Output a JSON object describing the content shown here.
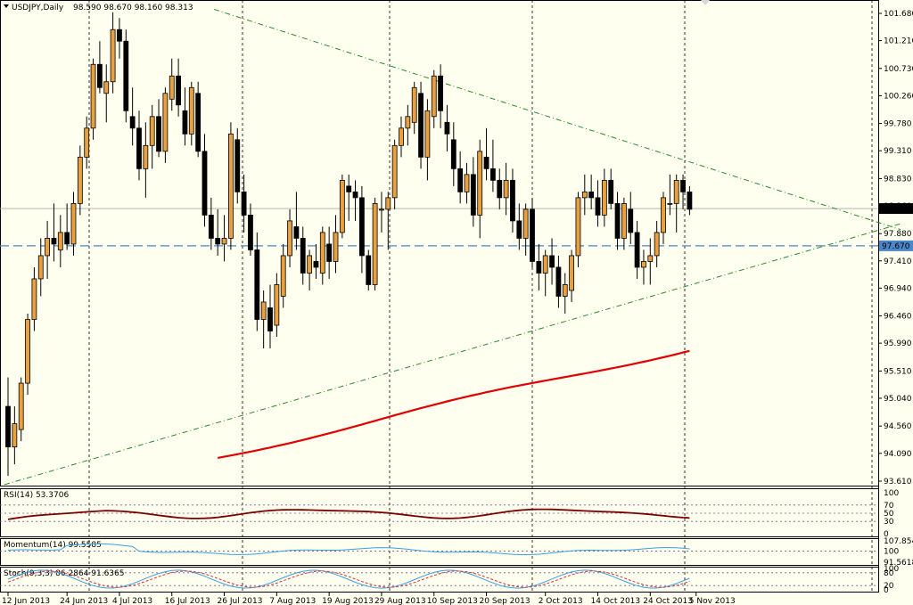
{
  "header": {
    "symbol": "USDJPY,Daily",
    "ohlc": "98.590 98.670 98.160 98.313"
  },
  "colors": {
    "background": "#fffff0",
    "bull_body": "#e8a040",
    "bear_body": "#000000",
    "ma_line": "#e00000",
    "trendline": "#2a8a2a",
    "current_price_tag": "#000000",
    "level_tag": "#4a86c8",
    "rsi_line": "#7a0000",
    "momentum_line": "#3aa0e0",
    "stoch_main": "#3aa0e0",
    "stoch_signal": "#e03030"
  },
  "chart_data": [
    {
      "type": "candlestick",
      "title": "USDJPY,Daily",
      "ylim": [
        93.61,
        101.68
      ],
      "y_ticks": [
        "101.680",
        "101.210",
        "100.730",
        "100.260",
        "99.780",
        "99.310",
        "98.830",
        "98.360",
        "97.880",
        "97.410",
        "96.940",
        "96.460",
        "95.990",
        "95.510",
        "95.040",
        "94.560",
        "94.090",
        "93.610"
      ],
      "x_ticks": [
        "12 Jun 2013",
        "24 Jun 2013",
        "4 Jul 2013",
        "16 Jul 2013",
        "26 Jul 2013",
        "7 Aug 2013",
        "19 Aug 2013",
        "29 Aug 2013",
        "10 Sep 2013",
        "20 Sep 2013",
        "2 Oct 2013",
        "14 Oct 2013",
        "24 Oct 2013",
        "5 Nov 2013"
      ],
      "current_price": "98.313",
      "horizontal_level": "97.670",
      "candles": [
        [
          94.9,
          95.4,
          93.7,
          94.2
        ],
        [
          94.2,
          94.9,
          93.9,
          94.6
        ],
        [
          94.5,
          95.4,
          94.3,
          95.3
        ],
        [
          95.3,
          96.5,
          95.1,
          96.4
        ],
        [
          96.4,
          97.3,
          96.2,
          97.1
        ],
        [
          97.1,
          97.8,
          96.8,
          97.5
        ],
        [
          97.5,
          98.1,
          97.1,
          97.8
        ],
        [
          97.8,
          98.4,
          97.4,
          97.7
        ],
        [
          97.6,
          98.2,
          97.3,
          97.9
        ],
        [
          97.9,
          98.4,
          97.6,
          97.7
        ],
        [
          97.7,
          98.6,
          97.5,
          98.4
        ],
        [
          98.4,
          99.4,
          98.2,
          99.2
        ],
        [
          99.2,
          99.9,
          99.0,
          99.7
        ],
        [
          99.7,
          100.9,
          99.5,
          100.8
        ],
        [
          100.8,
          101.2,
          100.3,
          100.4
        ],
        [
          100.3,
          100.8,
          99.8,
          100.5
        ],
        [
          100.5,
          101.7,
          100.3,
          101.4
        ],
        [
          101.4,
          101.6,
          100.9,
          101.2
        ],
        [
          101.2,
          101.4,
          99.8,
          100.0
        ],
        [
          99.9,
          100.4,
          99.4,
          99.7
        ],
        [
          99.7,
          100.0,
          98.8,
          99.0
        ],
        [
          99.0,
          99.8,
          98.5,
          99.4
        ],
        [
          99.4,
          100.1,
          99.0,
          99.9
        ],
        [
          99.9,
          100.2,
          99.2,
          99.3
        ],
        [
          99.3,
          100.4,
          99.1,
          100.3
        ],
        [
          100.2,
          100.9,
          100.0,
          100.6
        ],
        [
          100.6,
          100.9,
          99.9,
          100.1
        ],
        [
          100.0,
          100.4,
          99.4,
          99.6
        ],
        [
          99.6,
          100.5,
          99.4,
          100.4
        ],
        [
          100.3,
          100.5,
          99.2,
          99.3
        ],
        [
          99.3,
          99.6,
          98.0,
          98.2
        ],
        [
          98.2,
          98.5,
          97.6,
          97.8
        ],
        [
          97.8,
          98.3,
          97.5,
          97.7
        ],
        [
          97.7,
          98.2,
          97.4,
          97.8
        ],
        [
          97.8,
          99.8,
          97.6,
          99.6
        ],
        [
          99.5,
          99.7,
          98.4,
          98.6
        ],
        [
          98.6,
          98.9,
          97.9,
          98.2
        ],
        [
          98.2,
          98.4,
          97.5,
          97.6
        ],
        [
          97.6,
          97.9,
          96.2,
          96.4
        ],
        [
          96.4,
          96.9,
          95.9,
          96.7
        ],
        [
          96.6,
          97.0,
          95.9,
          96.2
        ],
        [
          96.3,
          97.2,
          96.1,
          97.0
        ],
        [
          96.8,
          97.7,
          96.6,
          97.5
        ],
        [
          97.5,
          98.3,
          97.3,
          98.1
        ],
        [
          98.0,
          98.6,
          97.6,
          97.8
        ],
        [
          97.8,
          98.0,
          97.0,
          97.2
        ],
        [
          97.2,
          97.6,
          96.9,
          97.5
        ],
        [
          97.4,
          97.7,
          97.1,
          97.3
        ],
        [
          97.2,
          98.0,
          97.0,
          97.9
        ],
        [
          97.7,
          98.0,
          97.1,
          97.4
        ],
        [
          97.4,
          98.2,
          97.2,
          97.9
        ],
        [
          97.9,
          98.9,
          97.8,
          98.8
        ],
        [
          98.7,
          98.9,
          98.1,
          98.6
        ],
        [
          98.6,
          98.8,
          98.1,
          98.5
        ],
        [
          98.5,
          98.7,
          97.2,
          97.5
        ],
        [
          97.5,
          97.6,
          96.9,
          97.0
        ],
        [
          97.0,
          98.5,
          96.9,
          98.4
        ],
        [
          98.3,
          98.6,
          97.9,
          98.3
        ],
        [
          98.3,
          98.6,
          97.6,
          98.5
        ],
        [
          98.5,
          99.5,
          98.3,
          99.4
        ],
        [
          99.4,
          99.9,
          99.2,
          99.7
        ],
        [
          99.7,
          100.1,
          99.4,
          99.9
        ],
        [
          99.8,
          100.5,
          99.6,
          100.4
        ],
        [
          100.3,
          100.5,
          99.0,
          99.2
        ],
        [
          99.2,
          100.2,
          98.8,
          100.0
        ],
        [
          99.9,
          100.7,
          99.7,
          100.6
        ],
        [
          100.6,
          100.8,
          99.7,
          100.0
        ],
        [
          99.8,
          100.1,
          99.3,
          99.6
        ],
        [
          99.5,
          99.8,
          98.7,
          99.0
        ],
        [
          99.0,
          99.3,
          98.4,
          98.6
        ],
        [
          98.6,
          99.1,
          98.4,
          98.9
        ],
        [
          98.9,
          99.2,
          98.0,
          98.2
        ],
        [
          98.2,
          99.5,
          97.8,
          99.3
        ],
        [
          99.2,
          99.7,
          98.8,
          99.0
        ],
        [
          99.0,
          99.5,
          98.6,
          98.8
        ],
        [
          98.8,
          99.0,
          98.3,
          98.5
        ],
        [
          98.5,
          99.1,
          98.2,
          98.8
        ],
        [
          98.8,
          99.0,
          97.9,
          98.1
        ],
        [
          98.1,
          98.4,
          97.6,
          97.8
        ],
        [
          97.8,
          98.4,
          97.5,
          98.3
        ],
        [
          98.3,
          98.5,
          97.3,
          97.4
        ],
        [
          97.4,
          97.7,
          96.9,
          97.2
        ],
        [
          97.2,
          97.6,
          96.8,
          97.5
        ],
        [
          97.5,
          97.8,
          97.0,
          97.3
        ],
        [
          97.3,
          97.5,
          96.6,
          96.8
        ],
        [
          96.8,
          97.2,
          96.5,
          97.0
        ],
        [
          96.9,
          97.6,
          96.7,
          97.5
        ],
        [
          97.5,
          98.6,
          97.3,
          98.5
        ],
        [
          98.5,
          98.9,
          98.2,
          98.6
        ],
        [
          98.6,
          98.9,
          98.3,
          98.5
        ],
        [
          98.5,
          98.8,
          98.0,
          98.2
        ],
        [
          98.2,
          99.0,
          98.0,
          98.8
        ],
        [
          98.8,
          99.0,
          98.3,
          98.4
        ],
        [
          98.4,
          98.6,
          97.6,
          97.8
        ],
        [
          97.8,
          98.5,
          97.6,
          98.4
        ],
        [
          98.3,
          98.6,
          97.7,
          97.9
        ],
        [
          97.9,
          98.1,
          97.1,
          97.3
        ],
        [
          97.3,
          97.6,
          97.0,
          97.4
        ],
        [
          97.4,
          97.8,
          97.0,
          97.5
        ],
        [
          97.5,
          98.1,
          97.3,
          97.9
        ],
        [
          97.9,
          98.6,
          97.7,
          98.5
        ],
        [
          98.4,
          98.9,
          98.2,
          98.4
        ],
        [
          98.4,
          98.9,
          97.9,
          98.8
        ],
        [
          98.8,
          98.9,
          98.3,
          98.6
        ],
        [
          98.6,
          98.7,
          98.2,
          98.3
        ]
      ]
    },
    {
      "type": "line",
      "title": "RSI(14) 53.3706",
      "ylim": [
        0,
        100
      ],
      "y_ticks": [
        "100",
        "70",
        "50",
        "30",
        "0"
      ],
      "levels": [
        70,
        50,
        30
      ]
    },
    {
      "type": "line",
      "title": "Momentum(14) 99.5585",
      "y_ticks": [
        "107.854",
        "100",
        "91.5618"
      ]
    },
    {
      "type": "line",
      "title": "Stoch(9,3,3) 86.2864 91.6365",
      "ylim": [
        0,
        100
      ],
      "y_ticks": [
        "100",
        "80",
        "20",
        "0"
      ]
    }
  ]
}
